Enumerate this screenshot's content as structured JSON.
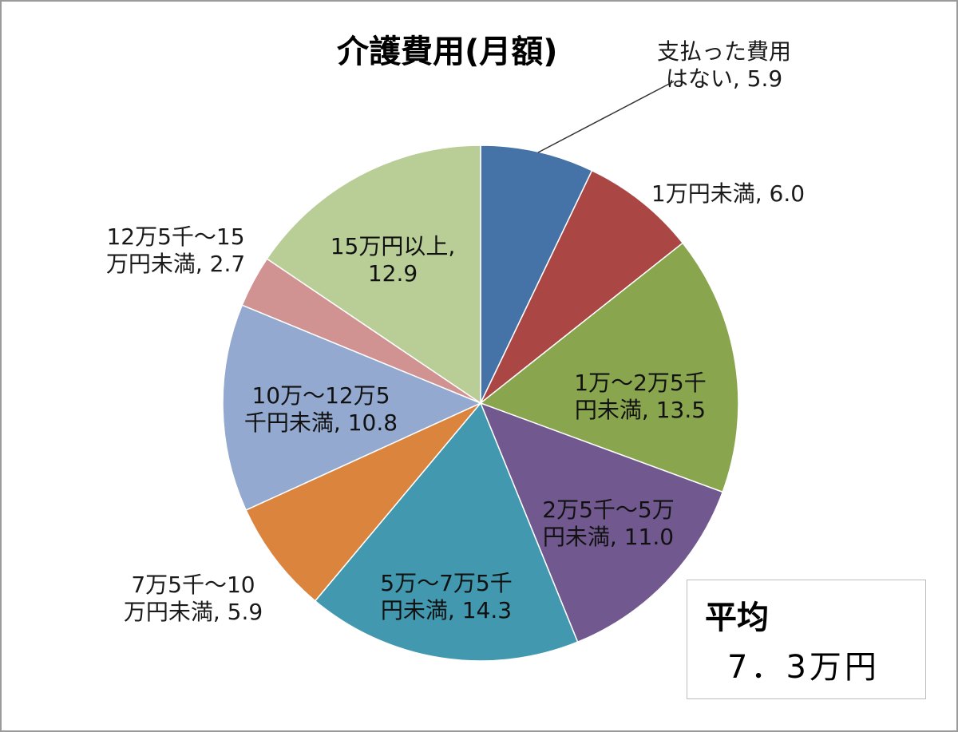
{
  "chart_data": {
    "type": "pie",
    "title": "介護費用(月額)",
    "unit": "%",
    "start_angle_deg": 0,
    "direction": "clockwise",
    "slices": [
      {
        "label_lines": [
          "支払った費用",
          "はない"
        ],
        "value": 5.9,
        "color": "#4572a7"
      },
      {
        "label_lines": [
          "1万円未満"
        ],
        "value": 6.0,
        "color": "#aa4643"
      },
      {
        "label_lines": [
          "1万～2万5千",
          "円未満"
        ],
        "value": 13.5,
        "color": "#89a54e"
      },
      {
        "label_lines": [
          "2万5千～5万",
          "円未満"
        ],
        "value": 11.0,
        "color": "#71588f"
      },
      {
        "label_lines": [
          "5万～7万5千",
          "円未満"
        ],
        "value": 14.3,
        "color": "#4198af"
      },
      {
        "label_lines": [
          "7万5千～10",
          "万円未満"
        ],
        "value": 5.9,
        "color": "#db843d"
      },
      {
        "label_lines": [
          "10万～12万5",
          "千円未満"
        ],
        "value": 10.8,
        "color": "#93a9d0"
      },
      {
        "label_lines": [
          "12万5千～15",
          "万円未満"
        ],
        "value": 2.7,
        "color": "#d09392"
      },
      {
        "label_lines": [
          "15万円以上,"
        ],
        "value": 12.9,
        "color": "#b9cd96"
      }
    ]
  },
  "average": {
    "label": "平均",
    "value": "7．3万円"
  }
}
